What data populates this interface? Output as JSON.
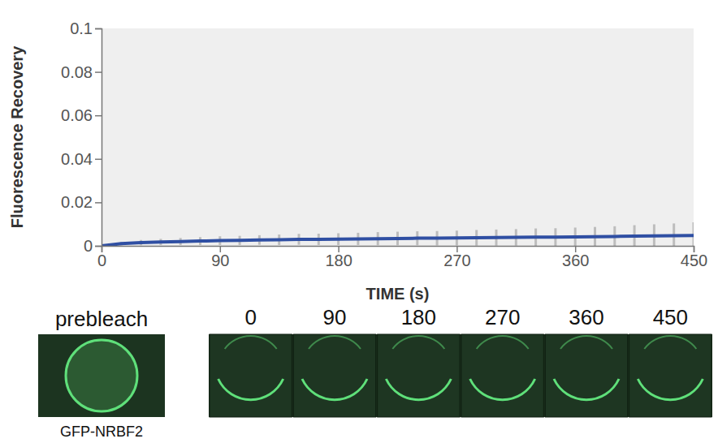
{
  "chart_data": {
    "type": "line",
    "x_label": "TIME (s)",
    "y_label": "Fluorescence Recovery",
    "x": [
      0,
      15,
      30,
      45,
      60,
      75,
      90,
      105,
      120,
      135,
      150,
      165,
      180,
      195,
      210,
      225,
      240,
      255,
      270,
      285,
      300,
      315,
      330,
      345,
      360,
      375,
      390,
      405,
      420,
      435,
      450
    ],
    "series": [
      {
        "color": "#2f4fa3",
        "values": [
          0,
          0.001,
          0.0015,
          0.0018,
          0.002,
          0.0022,
          0.0024,
          0.0025,
          0.0027,
          0.0028,
          0.003,
          0.003,
          0.0031,
          0.0032,
          0.0033,
          0.0034,
          0.0035,
          0.0035,
          0.0036,
          0.0037,
          0.0038,
          0.0039,
          0.004,
          0.004,
          0.0041,
          0.0042,
          0.0043,
          0.0045,
          0.0046,
          0.0047,
          0.0048
        ],
        "errors": [
          0,
          0.0008,
          0.0012,
          0.0014,
          0.0016,
          0.0018,
          0.002,
          0.0021,
          0.0022,
          0.0024,
          0.0025,
          0.0026,
          0.0027,
          0.0028,
          0.003,
          0.0031,
          0.0032,
          0.0033,
          0.0034,
          0.0036,
          0.0037,
          0.0038,
          0.004,
          0.0041,
          0.0043,
          0.0045,
          0.0047,
          0.005,
          0.0053,
          0.0056,
          0.006
        ]
      }
    ],
    "xlim": [
      0,
      450
    ],
    "ylim": [
      0,
      0.1
    ],
    "xticks": [
      0,
      90,
      180,
      270,
      360,
      450
    ],
    "yticks": [
      0,
      0.02,
      0.04,
      0.06,
      0.08,
      0.1
    ],
    "grid": false,
    "image_panels": {
      "prebleach_label": "prebleach",
      "times": [
        0,
        90,
        180,
        270,
        360,
        450
      ],
      "caption": "GFP-NRBF2"
    }
  }
}
